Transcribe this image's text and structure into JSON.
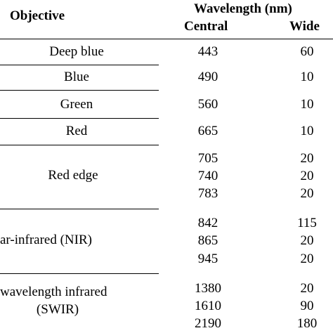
{
  "header": {
    "objective": "Objective",
    "wavelength": "Wavelength (nm)",
    "central": "Central",
    "wide": "Wide"
  },
  "rows": [
    {
      "objective": "Deep blue",
      "central": [
        "443"
      ],
      "wide": [
        "60"
      ]
    },
    {
      "objective": "Blue",
      "central": [
        "490"
      ],
      "wide": [
        "10"
      ]
    },
    {
      "objective": "Green",
      "central": [
        "560"
      ],
      "wide": [
        "10"
      ]
    },
    {
      "objective": "Red",
      "central": [
        "665"
      ],
      "wide": [
        "10"
      ]
    },
    {
      "objective": "Red edge",
      "central": [
        "705",
        "740",
        "783"
      ],
      "wide": [
        "20",
        "20",
        "20"
      ]
    },
    {
      "objective": "ar-infrared (NIR)",
      "central": [
        "842",
        "865",
        "945"
      ],
      "wide": [
        "115",
        "20",
        "20"
      ]
    },
    {
      "objective": [
        "wavelength infrared",
        "(SWIR)"
      ],
      "central": [
        "1380",
        "1610",
        "2190"
      ],
      "wide": [
        "20",
        "90",
        "180"
      ]
    }
  ]
}
